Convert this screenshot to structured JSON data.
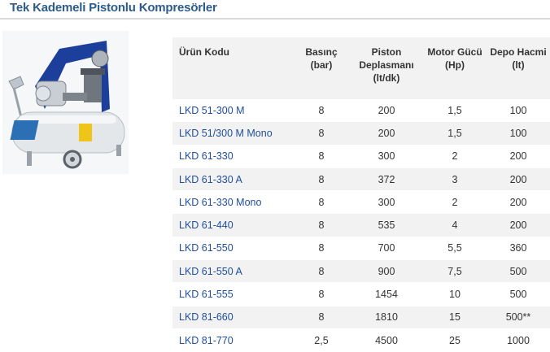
{
  "page": {
    "title": "Tek Kademeli Pistonlu Kompresörler"
  },
  "colors": {
    "title": "#2d5c8a",
    "code_text": "#1f4e9a",
    "row_shade": "#f2f2f2",
    "tank": "#e9ecef",
    "motor_frame": "#1d3f9c"
  },
  "product_image": {
    "icon": "air-compressor-image"
  },
  "table": {
    "headers": [
      {
        "lines": [
          "Ürün Kodu"
        ]
      },
      {
        "lines": [
          "Basınç",
          "(bar)"
        ]
      },
      {
        "lines": [
          "Piston",
          "Deplasmanı",
          "(lt/dk)"
        ]
      },
      {
        "lines": [
          "Motor Gücü",
          "(Hp)"
        ]
      },
      {
        "lines": [
          "Depo Hacmi",
          "(lt)"
        ]
      }
    ],
    "rows": [
      [
        "LKD 51-300 M",
        "8",
        "200",
        "1,5",
        "100"
      ],
      [
        "LKD 51/300 M Mono",
        "8",
        "200",
        "1,5",
        "100"
      ],
      [
        "LKD 61-330",
        "8",
        "300",
        "2",
        "200"
      ],
      [
        "LKD 61-330 A",
        "8",
        "372",
        "3",
        "200"
      ],
      [
        "LKD 61-330 Mono",
        "8",
        "300",
        "2",
        "200"
      ],
      [
        "LKD 61-440",
        "8",
        "535",
        "4",
        "200"
      ],
      [
        "LKD 61-550",
        "8",
        "700",
        "5,5",
        "360"
      ],
      [
        "LKD 61-550 A",
        "8",
        "900",
        "7,5",
        "500"
      ],
      [
        "LKD 61-555",
        "8",
        "1454",
        "10",
        "500"
      ],
      [
        "LKD 81-660",
        "8",
        "1810",
        "15",
        "500**"
      ],
      [
        "LKD 81-770",
        "2,5",
        "4500",
        "25",
        "1000"
      ]
    ]
  }
}
